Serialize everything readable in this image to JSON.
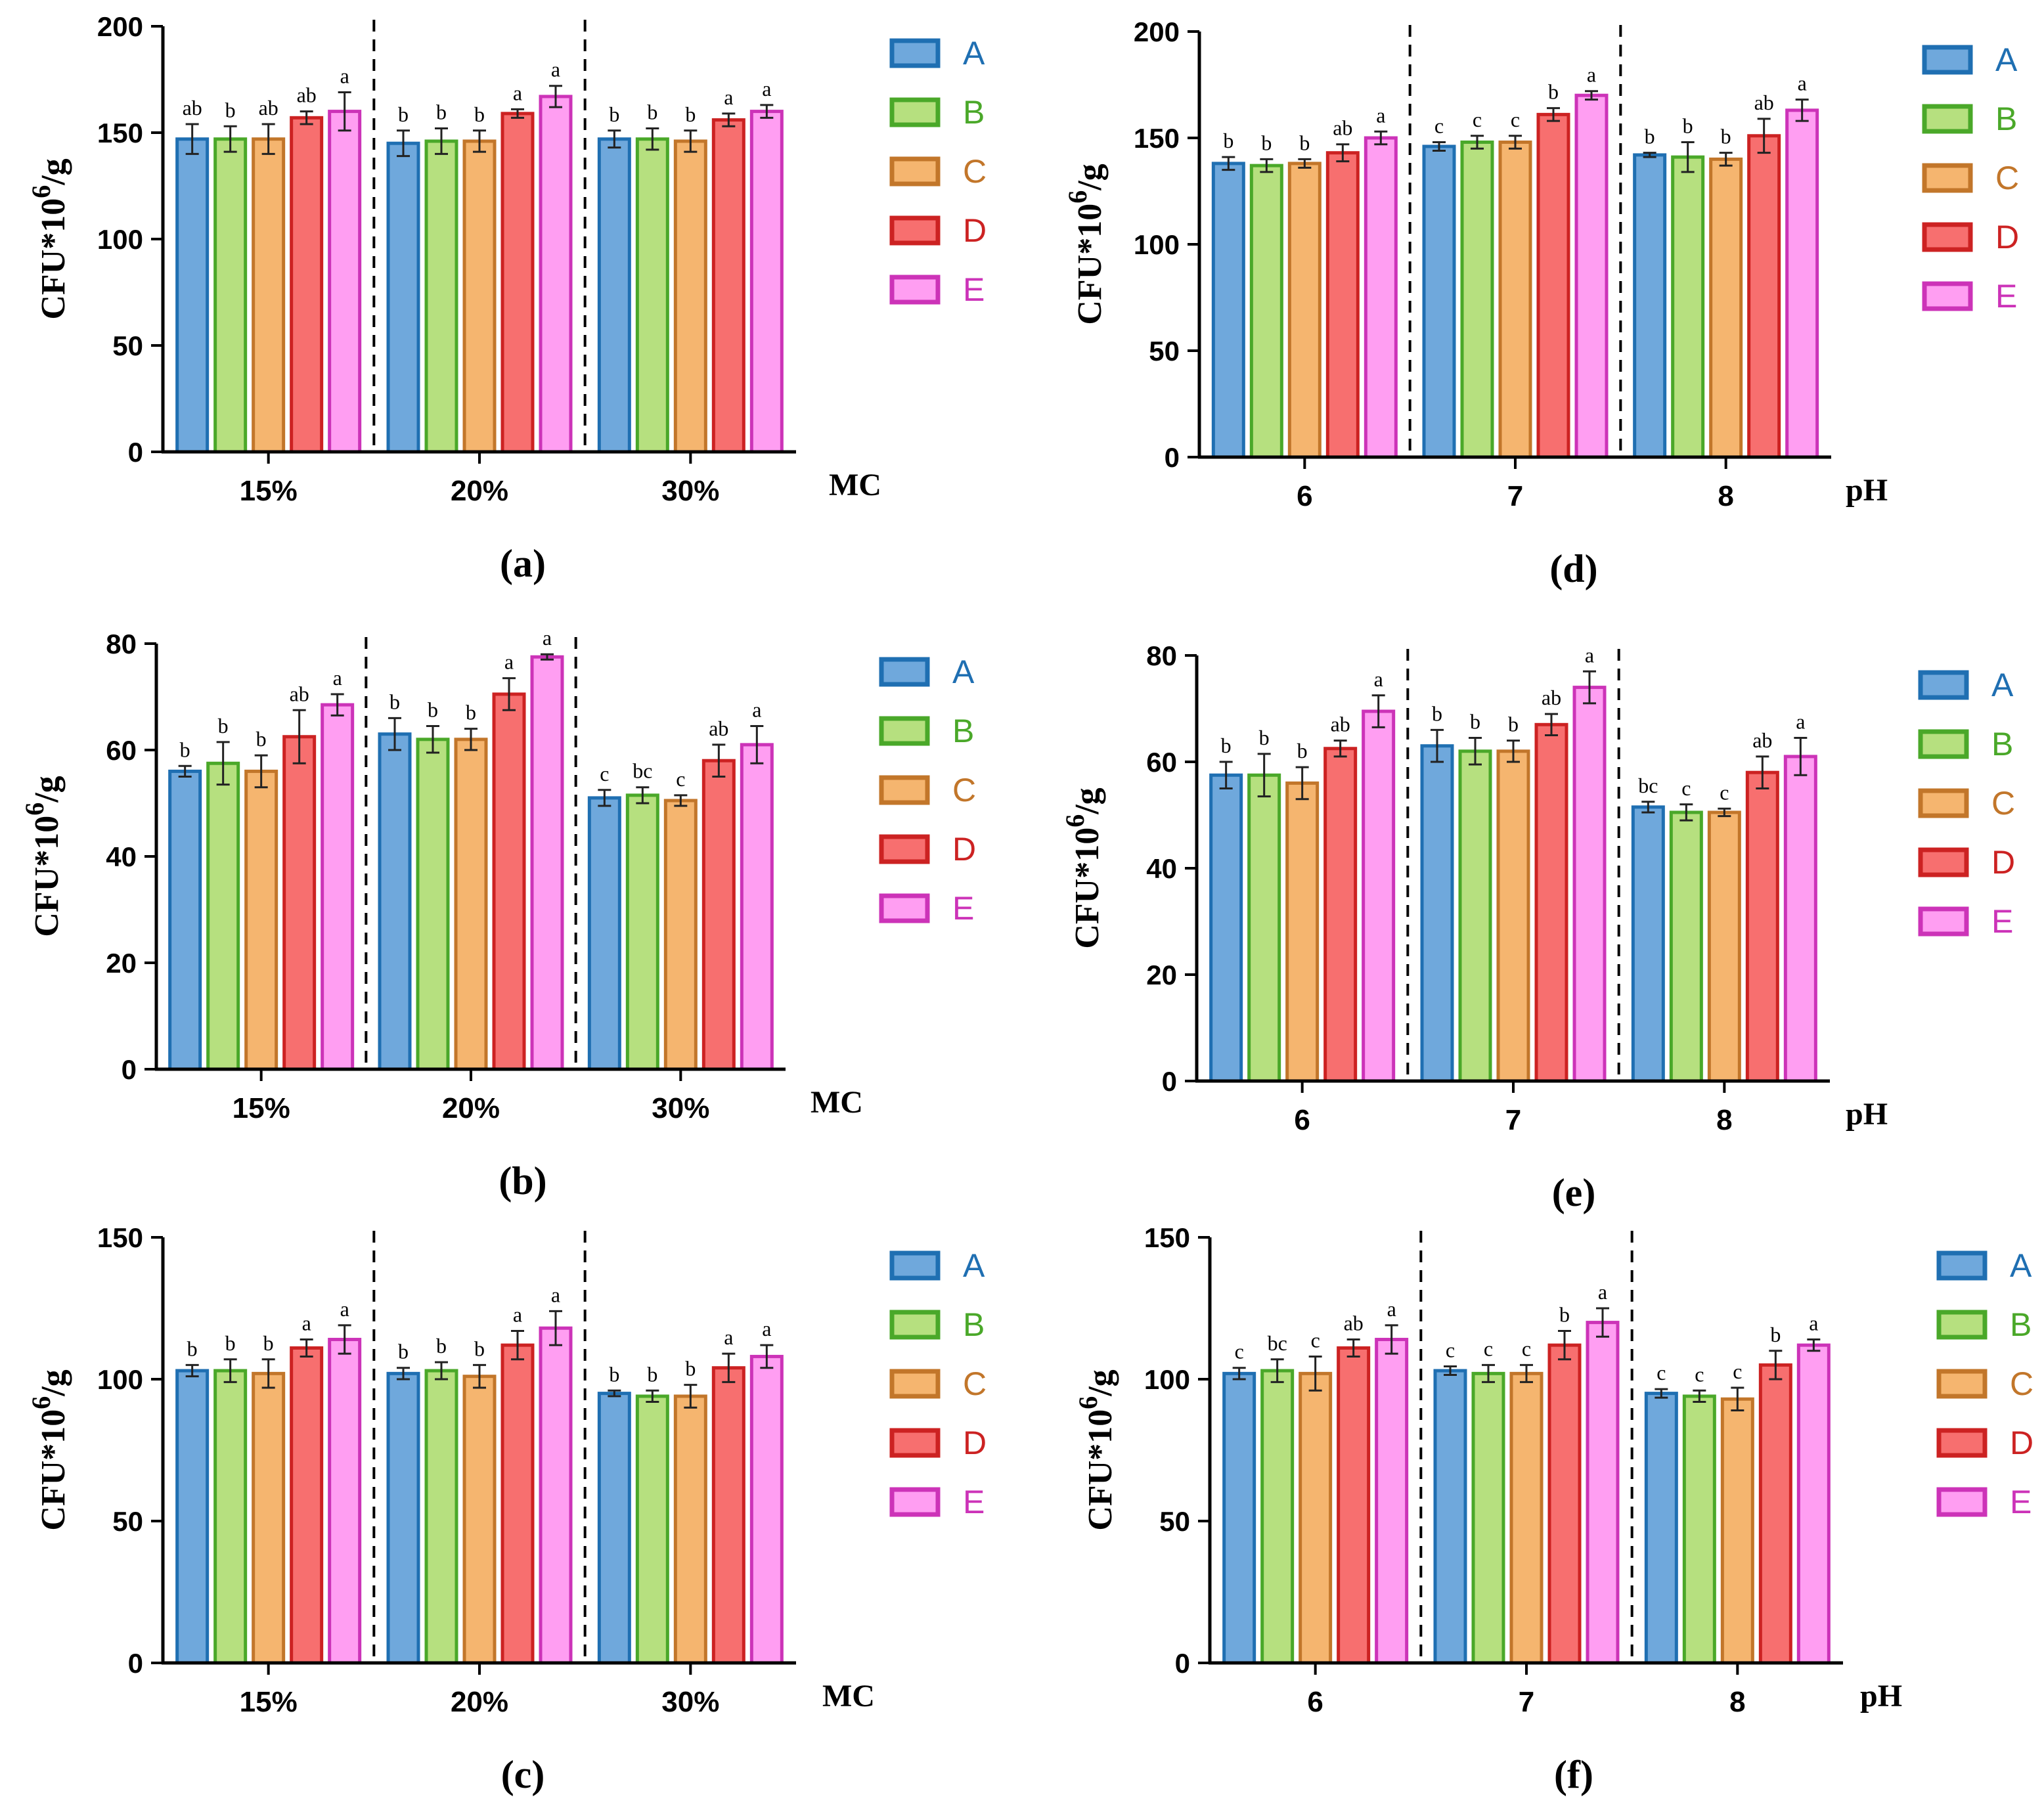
{
  "series_names": [
    "A",
    "B",
    "C",
    "D",
    "E"
  ],
  "series_colors": {
    "A": {
      "fill": "#6fa8dc",
      "stroke": "#1f6fb2"
    },
    "B": {
      "fill": "#b6e07f",
      "stroke": "#4aa829"
    },
    "C": {
      "fill": "#f5b56f",
      "stroke": "#c2762a"
    },
    "D": {
      "fill": "#f76f6f",
      "stroke": "#cc2222"
    },
    "E": {
      "fill": "#ff9ef2",
      "stroke": "#cc33b8"
    }
  },
  "legend_text_colors": {
    "A": "#1f6fb2",
    "B": "#4aa829",
    "C": "#c2762a",
    "D": "#cc2222",
    "E": "#cc33b8"
  },
  "chart_data": [
    {
      "type": "bar",
      "panel": "(a)",
      "xlabel": "MC",
      "ylabel": "CFU*10^6/g",
      "ylim": [
        0,
        200
      ],
      "yticks": [
        0,
        50,
        100,
        150,
        200
      ],
      "categories": [
        "15%",
        "20%",
        "30%"
      ],
      "series": [
        {
          "name": "A",
          "values": [
            147,
            145,
            147
          ],
          "errors": [
            7,
            6,
            4
          ],
          "labels": [
            "ab",
            "b",
            "b"
          ]
        },
        {
          "name": "B",
          "values": [
            147,
            146,
            147
          ],
          "errors": [
            6,
            6,
            5
          ],
          "labels": [
            "b",
            "b",
            "b"
          ]
        },
        {
          "name": "C",
          "values": [
            147,
            146,
            146
          ],
          "errors": [
            7,
            5,
            5
          ],
          "labels": [
            "ab",
            "b",
            "b"
          ]
        },
        {
          "name": "D",
          "values": [
            157,
            159,
            156
          ],
          "errors": [
            3,
            2,
            3
          ],
          "labels": [
            "ab",
            "a",
            "a"
          ]
        },
        {
          "name": "E",
          "values": [
            160,
            167,
            160
          ],
          "errors": [
            9,
            5,
            3
          ],
          "labels": [
            "a",
            "a",
            "a"
          ]
        }
      ]
    },
    {
      "type": "bar",
      "panel": "(b)",
      "xlabel": "MC",
      "ylabel": "CFU*10^6/g",
      "ylim": [
        0,
        80
      ],
      "yticks": [
        0,
        20,
        40,
        60,
        80
      ],
      "categories": [
        "15%",
        "20%",
        "30%"
      ],
      "series": [
        {
          "name": "A",
          "values": [
            56,
            63,
            51
          ],
          "errors": [
            1,
            3,
            1.5
          ],
          "labels": [
            "b",
            "b",
            "c"
          ]
        },
        {
          "name": "B",
          "values": [
            57.5,
            62,
            51.5
          ],
          "errors": [
            4,
            2.5,
            1.5
          ],
          "labels": [
            "b",
            "b",
            "bc"
          ]
        },
        {
          "name": "C",
          "values": [
            56,
            62,
            50.5
          ],
          "errors": [
            3,
            2,
            1
          ],
          "labels": [
            "b",
            "b",
            "c"
          ]
        },
        {
          "name": "D",
          "values": [
            62.5,
            70.5,
            58
          ],
          "errors": [
            5,
            3,
            3
          ],
          "labels": [
            "ab",
            "a",
            "ab"
          ]
        },
        {
          "name": "E",
          "values": [
            68.5,
            77.5,
            61
          ],
          "errors": [
            2,
            0.5,
            3.5
          ],
          "labels": [
            "a",
            "a",
            "a"
          ]
        }
      ]
    },
    {
      "type": "bar",
      "panel": "(c)",
      "xlabel": "MC",
      "ylabel": "CFU*10^6/g",
      "ylim": [
        0,
        150
      ],
      "yticks": [
        0,
        50,
        100,
        150
      ],
      "categories": [
        "15%",
        "20%",
        "30%"
      ],
      "series": [
        {
          "name": "A",
          "values": [
            103,
            102,
            95
          ],
          "errors": [
            2,
            2,
            1
          ],
          "labels": [
            "b",
            "b",
            "b"
          ]
        },
        {
          "name": "B",
          "values": [
            103,
            103,
            94
          ],
          "errors": [
            4,
            3,
            2
          ],
          "labels": [
            "b",
            "b",
            "b"
          ]
        },
        {
          "name": "C",
          "values": [
            102,
            101,
            94
          ],
          "errors": [
            5,
            4,
            4
          ],
          "labels": [
            "b",
            "b",
            "b"
          ]
        },
        {
          "name": "D",
          "values": [
            111,
            112,
            104
          ],
          "errors": [
            3,
            5,
            5
          ],
          "labels": [
            "a",
            "a",
            "a"
          ]
        },
        {
          "name": "E",
          "values": [
            114,
            118,
            108
          ],
          "errors": [
            5,
            6,
            4
          ],
          "labels": [
            "a",
            "a",
            "a"
          ]
        }
      ]
    },
    {
      "type": "bar",
      "panel": "(d)",
      "xlabel": "pH",
      "ylabel": "CFU*10^6/g",
      "ylim": [
        0,
        200
      ],
      "yticks": [
        0,
        50,
        100,
        150,
        200
      ],
      "categories": [
        "6",
        "7",
        "8"
      ],
      "series": [
        {
          "name": "A",
          "values": [
            138,
            146,
            142
          ],
          "errors": [
            3,
            2,
            1
          ],
          "labels": [
            "b",
            "c",
            "b"
          ]
        },
        {
          "name": "B",
          "values": [
            137,
            148,
            141
          ],
          "errors": [
            3,
            3,
            7
          ],
          "labels": [
            "b",
            "c",
            "b"
          ]
        },
        {
          "name": "C",
          "values": [
            138,
            148,
            140
          ],
          "errors": [
            2,
            3,
            3
          ],
          "labels": [
            "b",
            "c",
            "b"
          ]
        },
        {
          "name": "D",
          "values": [
            143,
            161,
            151
          ],
          "errors": [
            4,
            3,
            8
          ],
          "labels": [
            "ab",
            "b",
            "ab"
          ]
        },
        {
          "name": "E",
          "values": [
            150,
            170,
            163
          ],
          "errors": [
            3,
            2,
            5
          ],
          "labels": [
            "a",
            "a",
            "a"
          ]
        }
      ]
    },
    {
      "type": "bar",
      "panel": "(e)",
      "xlabel": "pH",
      "ylabel": "CFU*10^6/g",
      "ylim": [
        0,
        80
      ],
      "yticks": [
        0,
        20,
        40,
        60,
        80
      ],
      "categories": [
        "6",
        "7",
        "8"
      ],
      "series": [
        {
          "name": "A",
          "values": [
            57.5,
            63,
            51.5
          ],
          "errors": [
            2.5,
            3,
            1
          ],
          "labels": [
            "b",
            "b",
            "bc"
          ]
        },
        {
          "name": "B",
          "values": [
            57.5,
            62,
            50.5
          ],
          "errors": [
            4,
            2.5,
            1.5
          ],
          "labels": [
            "b",
            "b",
            "c"
          ]
        },
        {
          "name": "C",
          "values": [
            56,
            62,
            50.5
          ],
          "errors": [
            3,
            2,
            0.7
          ],
          "labels": [
            "b",
            "b",
            "c"
          ]
        },
        {
          "name": "D",
          "values": [
            62.5,
            67,
            58
          ],
          "errors": [
            1.5,
            2,
            3
          ],
          "labels": [
            "ab",
            "ab",
            "ab"
          ]
        },
        {
          "name": "E",
          "values": [
            69.5,
            74,
            61
          ],
          "errors": [
            3,
            3,
            3.5
          ],
          "labels": [
            "a",
            "a",
            "a"
          ]
        }
      ]
    },
    {
      "type": "bar",
      "panel": "(f)",
      "xlabel": "pH",
      "ylabel": "CFU*10^6/g",
      "ylim": [
        0,
        150
      ],
      "yticks": [
        0,
        50,
        100,
        150
      ],
      "categories": [
        "6",
        "7",
        "8"
      ],
      "series": [
        {
          "name": "A",
          "values": [
            102,
            103,
            95
          ],
          "errors": [
            2,
            1.5,
            1.5
          ],
          "labels": [
            "c",
            "c",
            "c"
          ]
        },
        {
          "name": "B",
          "values": [
            103,
            102,
            94
          ],
          "errors": [
            4,
            3,
            2
          ],
          "labels": [
            "bc",
            "c",
            "c"
          ]
        },
        {
          "name": "C",
          "values": [
            102,
            102,
            93
          ],
          "errors": [
            6,
            3,
            4
          ],
          "labels": [
            "c",
            "c",
            "c"
          ]
        },
        {
          "name": "D",
          "values": [
            111,
            112,
            105
          ],
          "errors": [
            3,
            5,
            5
          ],
          "labels": [
            "ab",
            "b",
            "b"
          ]
        },
        {
          "name": "E",
          "values": [
            114,
            120,
            112
          ],
          "errors": [
            5,
            5,
            2
          ],
          "labels": [
            "a",
            "a",
            "a"
          ]
        }
      ]
    }
  ]
}
